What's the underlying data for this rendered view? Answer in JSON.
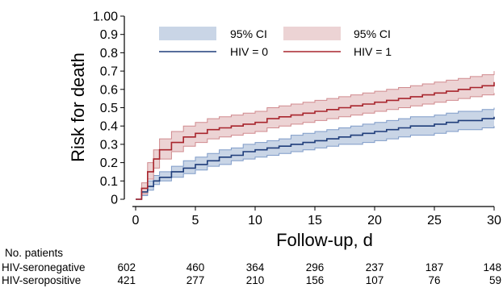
{
  "chart_data": {
    "type": "line",
    "step": true,
    "xlabel": "Follow-up, d",
    "ylabel": "Risk for death",
    "xlim": [
      0,
      30
    ],
    "ylim": [
      0,
      1.0
    ],
    "xticks": [
      "0",
      "5",
      "10",
      "15",
      "20",
      "25",
      "30"
    ],
    "yticks": [
      "0",
      "0.1",
      "0.2",
      "0.3",
      "0.4",
      "0.5",
      "0.6",
      "0.7",
      "0.8",
      "0.9",
      "1.00"
    ],
    "x_tick_values": [
      0,
      5,
      10,
      15,
      20,
      25,
      30
    ],
    "y_tick_values": [
      0,
      0.1,
      0.2,
      0.3,
      0.4,
      0.5,
      0.6,
      0.7,
      0.8,
      0.9,
      1.0
    ],
    "legend": {
      "position": "top",
      "entries": [
        "95% CI",
        "95% CI",
        "HIV = 0",
        "HIV = 1"
      ]
    },
    "series": [
      {
        "name": "HIV = 0",
        "color": "#1f3d7a",
        "ci_fill": "#c9d5e6",
        "ci_stroke": "#7f9bc8",
        "x": [
          0,
          0.5,
          1,
          1.5,
          2,
          3,
          4,
          5,
          6,
          7,
          8,
          9,
          10,
          11,
          12,
          13,
          14,
          15,
          16,
          17,
          18,
          19,
          20,
          21,
          22,
          23,
          24,
          25,
          26,
          27,
          28,
          29,
          30
        ],
        "y": [
          0,
          0.04,
          0.07,
          0.1,
          0.12,
          0.15,
          0.17,
          0.19,
          0.21,
          0.23,
          0.24,
          0.26,
          0.27,
          0.28,
          0.29,
          0.3,
          0.31,
          0.32,
          0.33,
          0.34,
          0.35,
          0.36,
          0.37,
          0.38,
          0.39,
          0.4,
          0.4,
          0.41,
          0.42,
          0.43,
          0.43,
          0.44,
          0.45
        ],
        "lower": [
          0,
          0.02,
          0.05,
          0.08,
          0.1,
          0.12,
          0.14,
          0.16,
          0.18,
          0.19,
          0.21,
          0.22,
          0.23,
          0.24,
          0.25,
          0.26,
          0.27,
          0.28,
          0.29,
          0.3,
          0.3,
          0.31,
          0.32,
          0.33,
          0.34,
          0.35,
          0.35,
          0.36,
          0.37,
          0.38,
          0.38,
          0.39,
          0.4
        ],
        "upper": [
          0,
          0.06,
          0.1,
          0.13,
          0.15,
          0.18,
          0.21,
          0.23,
          0.25,
          0.27,
          0.28,
          0.3,
          0.31,
          0.32,
          0.33,
          0.35,
          0.36,
          0.37,
          0.38,
          0.39,
          0.4,
          0.41,
          0.42,
          0.43,
          0.44,
          0.45,
          0.45,
          0.46,
          0.47,
          0.48,
          0.48,
          0.49,
          0.5
        ]
      },
      {
        "name": "HIV = 1",
        "color": "#a8252d",
        "ci_fill": "#ecd3d4",
        "ci_stroke": "#d08a8e",
        "x": [
          0,
          0.5,
          1,
          1.5,
          2,
          3,
          4,
          5,
          6,
          7,
          8,
          9,
          10,
          11,
          12,
          13,
          14,
          15,
          16,
          17,
          18,
          19,
          20,
          21,
          22,
          23,
          24,
          25,
          26,
          27,
          28,
          29,
          30
        ],
        "y": [
          0,
          0.06,
          0.15,
          0.22,
          0.27,
          0.31,
          0.34,
          0.36,
          0.38,
          0.39,
          0.4,
          0.41,
          0.42,
          0.44,
          0.45,
          0.46,
          0.47,
          0.48,
          0.49,
          0.5,
          0.51,
          0.52,
          0.53,
          0.54,
          0.55,
          0.56,
          0.57,
          0.58,
          0.59,
          0.6,
          0.61,
          0.62,
          0.64
        ],
        "lower": [
          0,
          0.03,
          0.11,
          0.17,
          0.22,
          0.26,
          0.29,
          0.31,
          0.33,
          0.34,
          0.35,
          0.36,
          0.37,
          0.39,
          0.4,
          0.41,
          0.42,
          0.43,
          0.44,
          0.45,
          0.46,
          0.47,
          0.48,
          0.49,
          0.5,
          0.51,
          0.52,
          0.53,
          0.54,
          0.55,
          0.56,
          0.57,
          0.58
        ],
        "upper": [
          0,
          0.09,
          0.2,
          0.27,
          0.33,
          0.37,
          0.4,
          0.42,
          0.44,
          0.45,
          0.46,
          0.47,
          0.48,
          0.5,
          0.51,
          0.52,
          0.53,
          0.54,
          0.55,
          0.56,
          0.57,
          0.58,
          0.59,
          0.6,
          0.61,
          0.62,
          0.63,
          0.64,
          0.65,
          0.66,
          0.67,
          0.68,
          0.7
        ]
      }
    ]
  },
  "risk_table": {
    "title": "No. patients",
    "rows": [
      {
        "label": "HIV-seronegative",
        "values": [
          "602",
          "460",
          "364",
          "296",
          "237",
          "187",
          "148"
        ]
      },
      {
        "label": "HIV-seropositive",
        "values": [
          "421",
          "277",
          "210",
          "156",
          "107",
          "76",
          "59"
        ]
      }
    ]
  }
}
